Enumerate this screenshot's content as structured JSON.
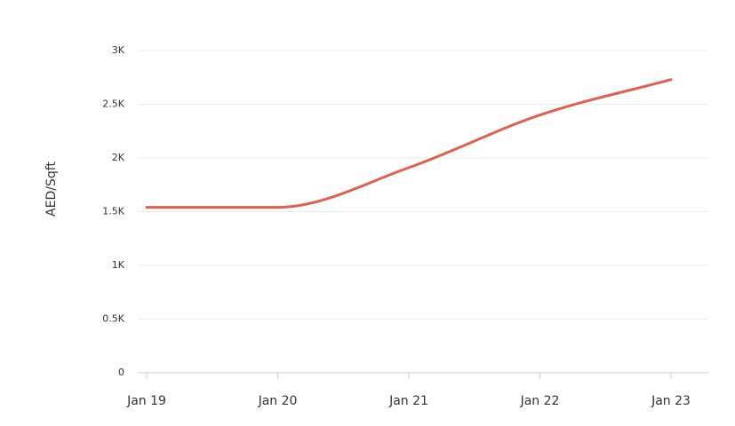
{
  "chart_data": {
    "type": "line",
    "y_label": "AED/Sqft",
    "categories": [
      "Jan 19",
      "Jan 20",
      "Jan 21",
      "Jan 22",
      "Jan 23"
    ],
    "values": [
      1540,
      1540,
      1910,
      2400,
      2730
    ],
    "color": "#e0604f",
    "ylim": [
      0,
      3000
    ],
    "yticks": [
      0,
      {
        "value": 500,
        "label": "0.5K"
      },
      {
        "value": 1000,
        "label": "1K"
      },
      {
        "value": 1500,
        "label": "1.5K"
      },
      {
        "value": 2000,
        "label": "2K"
      },
      {
        "value": 2500,
        "label": "2.5K"
      },
      {
        "value": 3000,
        "label": "3K"
      }
    ],
    "grid": true,
    "smooth": true
  }
}
